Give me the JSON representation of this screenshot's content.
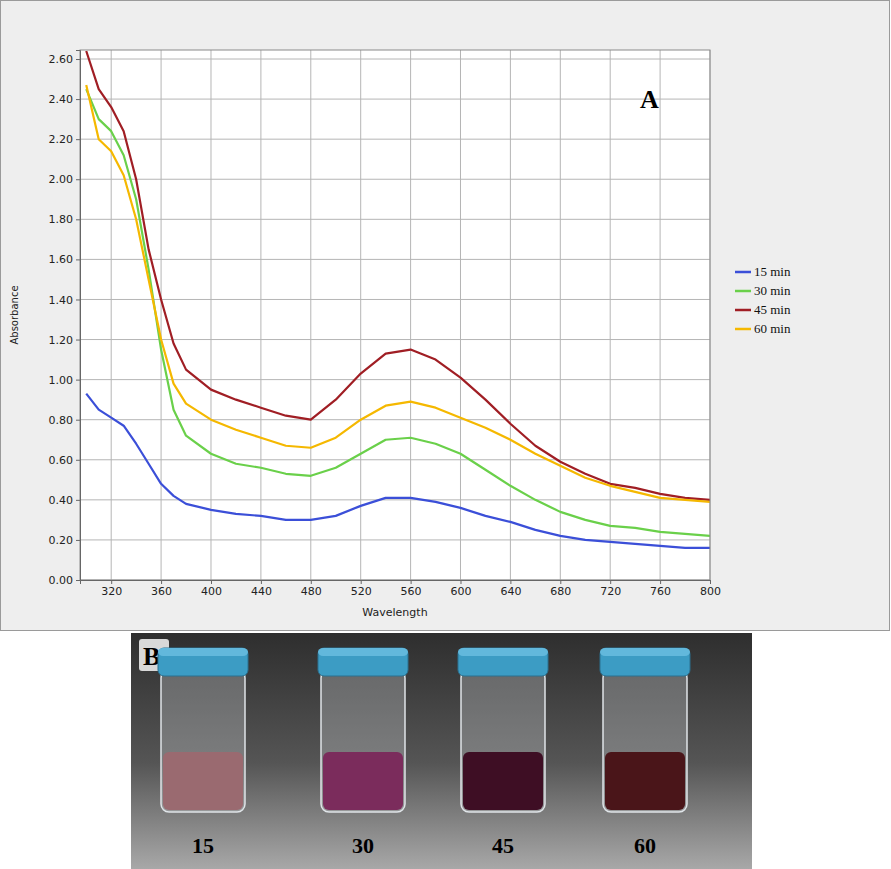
{
  "chart_data": {
    "type": "line",
    "panel": "A",
    "y_label": "Absorbance",
    "x_label": "Wavelength",
    "x": [
      300,
      310,
      320,
      330,
      340,
      350,
      360,
      370,
      380,
      400,
      420,
      440,
      460,
      480,
      500,
      520,
      540,
      560,
      580,
      600,
      620,
      640,
      660,
      680,
      700,
      720,
      740,
      760,
      780,
      800
    ],
    "series": [
      {
        "name": "15 min",
        "color": "#3b4fd8",
        "values": [
          0.93,
          0.85,
          0.81,
          0.77,
          0.68,
          0.58,
          0.48,
          0.42,
          0.38,
          0.35,
          0.33,
          0.32,
          0.3,
          0.3,
          0.32,
          0.37,
          0.41,
          0.41,
          0.39,
          0.36,
          0.32,
          0.29,
          0.25,
          0.22,
          0.2,
          0.19,
          0.18,
          0.17,
          0.16,
          0.16
        ]
      },
      {
        "name": "30 min",
        "color": "#6ad04a",
        "values": [
          2.45,
          2.3,
          2.24,
          2.12,
          1.9,
          1.55,
          1.15,
          0.85,
          0.72,
          0.63,
          0.58,
          0.56,
          0.53,
          0.52,
          0.56,
          0.63,
          0.7,
          0.71,
          0.68,
          0.63,
          0.55,
          0.47,
          0.4,
          0.34,
          0.3,
          0.27,
          0.26,
          0.24,
          0.23,
          0.22
        ]
      },
      {
        "name": "45 min",
        "color": "#a01e24",
        "values": [
          2.64,
          2.45,
          2.36,
          2.24,
          2.0,
          1.65,
          1.4,
          1.18,
          1.05,
          0.95,
          0.9,
          0.86,
          0.82,
          0.8,
          0.9,
          1.03,
          1.13,
          1.15,
          1.1,
          1.01,
          0.9,
          0.78,
          0.67,
          0.59,
          0.53,
          0.48,
          0.46,
          0.43,
          0.41,
          0.4
        ]
      },
      {
        "name": "60 min",
        "color": "#f5b800",
        "values": [
          2.47,
          2.2,
          2.14,
          2.02,
          1.8,
          1.5,
          1.2,
          0.98,
          0.88,
          0.8,
          0.75,
          0.71,
          0.67,
          0.66,
          0.71,
          0.8,
          0.87,
          0.89,
          0.86,
          0.81,
          0.76,
          0.7,
          0.63,
          0.57,
          0.51,
          0.47,
          0.44,
          0.41,
          0.4,
          0.39
        ]
      }
    ],
    "xlim": [
      295,
      800
    ],
    "xticks": [
      320,
      360,
      400,
      440,
      480,
      520,
      560,
      600,
      640,
      680,
      720,
      760,
      800
    ],
    "ylim": [
      0,
      2.645
    ],
    "yticks": [
      {
        "value": 0,
        "label": "0.00"
      },
      {
        "value": 0.2,
        "label": "0.20"
      },
      {
        "value": 0.4,
        "label": "0.40"
      },
      {
        "value": 0.6,
        "label": "0.60"
      },
      {
        "value": 0.8,
        "label": "0.80"
      },
      {
        "value": 1.0,
        "label": "1.00"
      },
      {
        "value": 1.2,
        "label": "1.20"
      },
      {
        "value": 1.4,
        "label": "1.40"
      },
      {
        "value": 1.6,
        "label": "1.60"
      },
      {
        "value": 1.8,
        "label": "1.80"
      },
      {
        "value": 2.0,
        "label": "2.00"
      },
      {
        "value": 2.2,
        "label": "2.20"
      },
      {
        "value": 2.4,
        "label": "2.40"
      },
      {
        "value": 2.6,
        "label": "2.60"
      }
    ],
    "grid": true,
    "legend": "right"
  },
  "photo": {
    "panel": "B",
    "vials": [
      {
        "label": "15",
        "color": "#9a6a70"
      },
      {
        "label": "30",
        "color": "#7b2c5c"
      },
      {
        "label": "45",
        "color": "#3e0e24"
      },
      {
        "label": "60",
        "color": "#4a1519"
      }
    ]
  }
}
